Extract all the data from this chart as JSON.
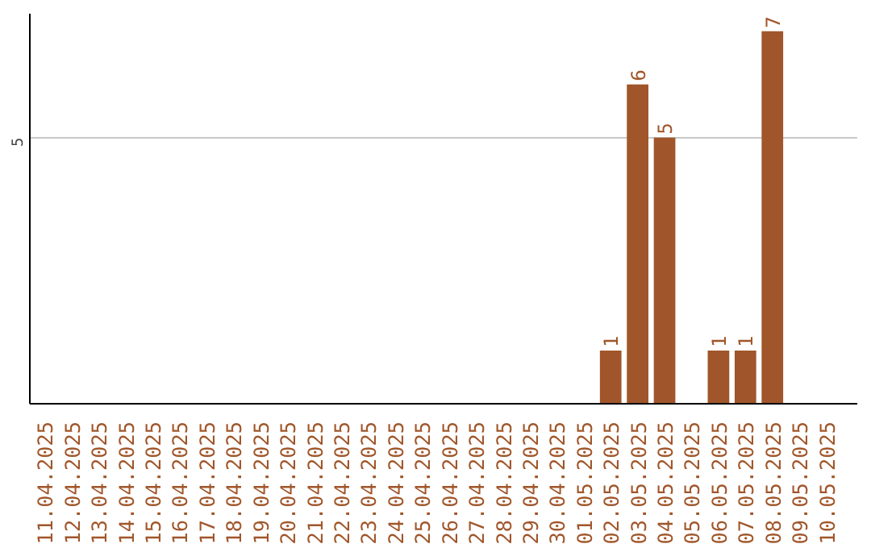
{
  "chart_data": {
    "type": "bar",
    "categories": [
      "11.04.2025",
      "12.04.2025",
      "13.04.2025",
      "14.04.2025",
      "15.04.2025",
      "16.04.2025",
      "17.04.2025",
      "18.04.2025",
      "19.04.2025",
      "20.04.2025",
      "21.04.2025",
      "22.04.2025",
      "23.04.2025",
      "24.04.2025",
      "25.04.2025",
      "26.04.2025",
      "27.04.2025",
      "28.04.2025",
      "29.04.2025",
      "30.04.2025",
      "01.05.2025",
      "02.05.2025",
      "03.05.2025",
      "04.05.2025",
      "05.05.2025",
      "06.05.2025",
      "07.05.2025",
      "08.05.2025",
      "09.05.2025",
      "10.05.2025"
    ],
    "values": [
      null,
      null,
      null,
      null,
      null,
      null,
      null,
      null,
      null,
      null,
      null,
      null,
      null,
      null,
      null,
      null,
      null,
      null,
      null,
      null,
      null,
      1,
      6,
      5,
      null,
      1,
      1,
      7,
      null,
      null
    ],
    "data_labels": true,
    "color": "#a0562a",
    "ylim": [
      0,
      7.33
    ],
    "yticks": [
      {
        "value": 0,
        "label": null
      },
      5
    ],
    "grid": "y"
  }
}
